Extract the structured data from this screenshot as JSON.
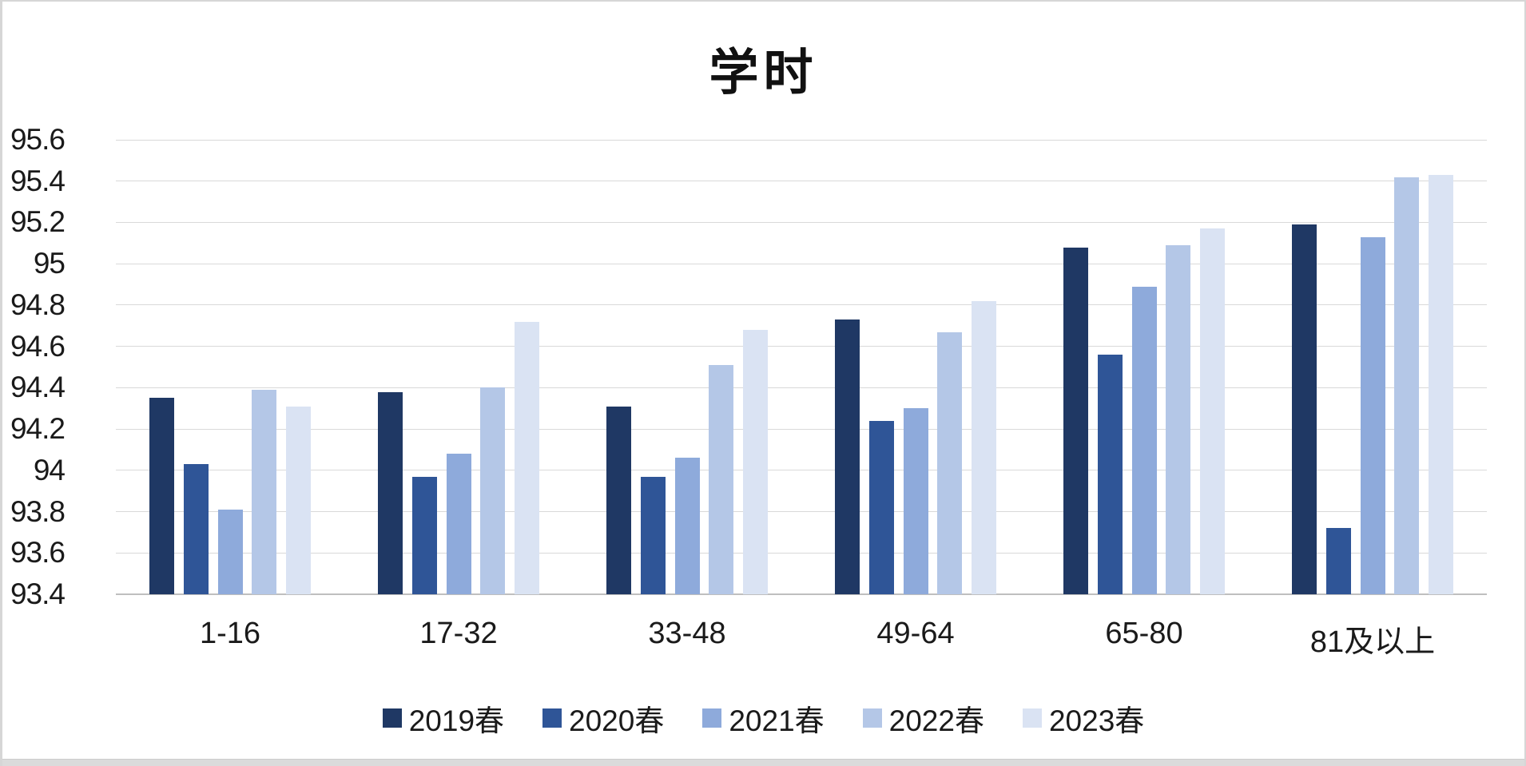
{
  "chart_data": {
    "type": "bar",
    "title": "学时",
    "categories": [
      "1-16",
      "17-32",
      "33-48",
      "49-64",
      "65-80",
      "81及以上"
    ],
    "series": [
      {
        "name": "2019春",
        "color": "#1F3864",
        "values": [
          94.35,
          94.38,
          94.31,
          94.73,
          95.08,
          95.19
        ]
      },
      {
        "name": "2020春",
        "color": "#2F5597",
        "values": [
          94.03,
          93.97,
          93.97,
          94.24,
          94.56,
          93.72
        ]
      },
      {
        "name": "2021春",
        "color": "#8EAADB",
        "values": [
          93.81,
          94.08,
          94.06,
          94.3,
          94.89,
          95.13
        ]
      },
      {
        "name": "2022春",
        "color": "#B4C7E7",
        "values": [
          94.39,
          94.4,
          94.51,
          94.67,
          95.09,
          95.42
        ]
      },
      {
        "name": "2023春",
        "color": "#DAE3F3",
        "values": [
          94.31,
          94.72,
          94.68,
          94.82,
          95.17,
          95.43
        ]
      }
    ],
    "y_axis": {
      "min": 93.4,
      "max": 95.6,
      "step": 0.2,
      "tick_labels": [
        "93.4",
        "93.6",
        "93.8",
        "94",
        "94.2",
        "94.4",
        "94.6",
        "94.8",
        "95",
        "95.2",
        "95.4",
        "95.6"
      ]
    },
    "grid": true,
    "legend_position": "bottom",
    "colors": {
      "gridline": "#d9d9d9",
      "axis_baseline": "#bfbfbf",
      "text": "#1a1a1a"
    }
  }
}
